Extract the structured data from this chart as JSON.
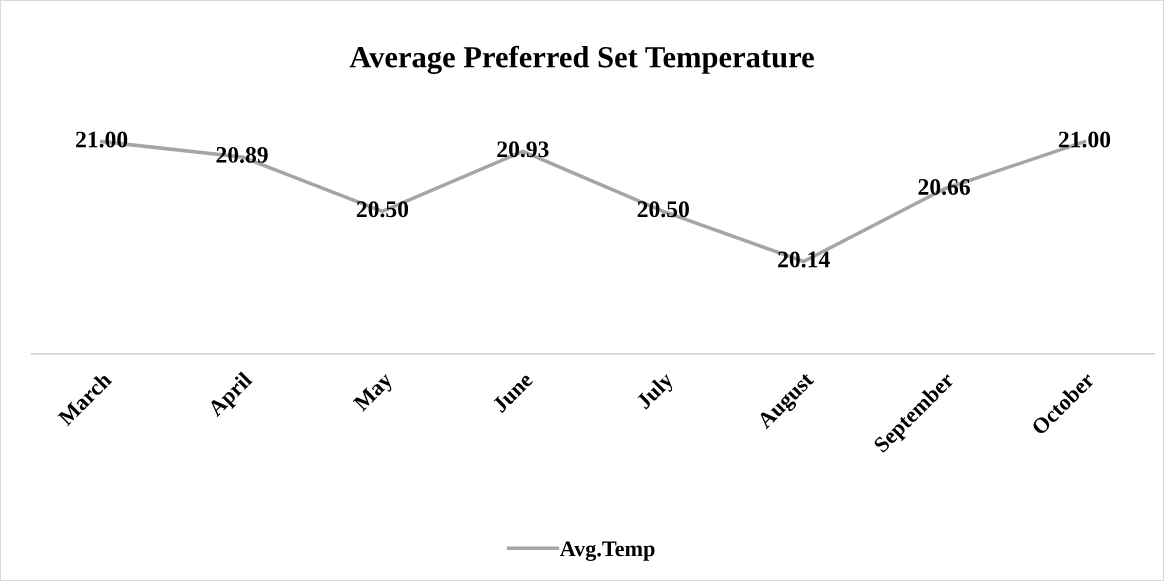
{
  "chart_data": {
    "type": "line",
    "title": "Average Preferred Set Temperature",
    "categories": [
      "March",
      "April",
      "May",
      "June",
      "July",
      "August",
      "September",
      "October"
    ],
    "series": [
      {
        "name": "Avg.Temp",
        "color": "#a5a5a5",
        "values": [
          21.0,
          20.89,
          20.5,
          20.93,
          20.5,
          20.14,
          20.66,
          21.0
        ],
        "value_labels": [
          "21.00",
          "20.89",
          "20.50",
          "20.93",
          "20.50",
          "20.14",
          "20.66",
          "21.00"
        ]
      }
    ],
    "tick_labels": "x",
    "grid": false,
    "legend": "bottom",
    "marker": "none",
    "line_style": "solid"
  }
}
